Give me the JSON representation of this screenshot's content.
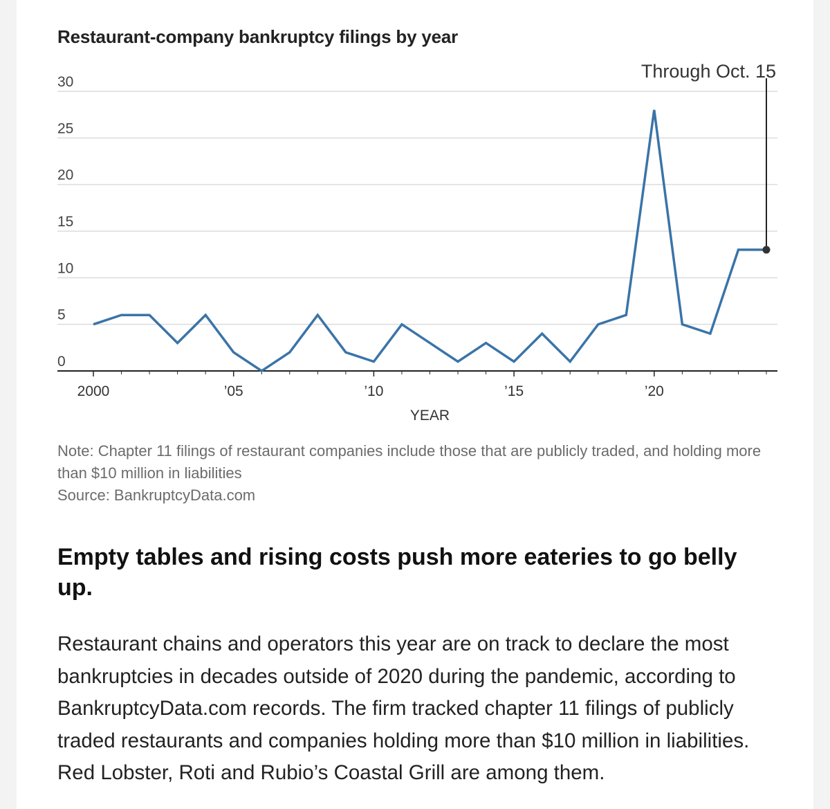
{
  "chart_data": {
    "type": "line",
    "title": "Restaurant-company bankruptcy filings by year",
    "xlabel": "YEAR",
    "ylabel": "",
    "x": [
      2000,
      2001,
      2002,
      2003,
      2004,
      2005,
      2006,
      2007,
      2008,
      2009,
      2010,
      2011,
      2012,
      2013,
      2014,
      2015,
      2016,
      2017,
      2018,
      2019,
      2020,
      2021,
      2022,
      2023,
      2024
    ],
    "series": [
      {
        "values": [
          5,
          6,
          6,
          3,
          6,
          2,
          0,
          2,
          6,
          2,
          1,
          5,
          3,
          1,
          3,
          1,
          4,
          1,
          5,
          6,
          28,
          5,
          4,
          13,
          13
        ]
      }
    ],
    "ylim": [
      0,
      30
    ],
    "xlim": [
      2000,
      2024
    ],
    "yticks": [
      0,
      5,
      10,
      15,
      20,
      25,
      30
    ],
    "xticks": [
      {
        "value": 2000,
        "label": "2000"
      },
      {
        "value": 2005,
        "label": "’05"
      },
      {
        "value": 2010,
        "label": "’10"
      },
      {
        "value": 2015,
        "label": "’15"
      },
      {
        "value": 2020,
        "label": "’20"
      }
    ],
    "annotation": {
      "x": 2024,
      "y": 13,
      "text": "Through Oct. 15"
    },
    "grid": true,
    "line_color": "#3a74a8"
  },
  "note": "Note: Chapter 11 filings of restaurant companies include those that are publicly traded, and holding more than $10 million in liabilities",
  "source": "Source: BankruptcyData.com",
  "article": {
    "headline": "Empty tables and rising costs push more eateries to go belly up.",
    "body": "Restaurant chains and operators this year are on track to declare the most bankruptcies in decades outside of 2020 during the pandemic, according to BankruptcyData.com records. The firm tracked chapter 11 filings of publicly traded restaurants and companies holding more than $10 million in liabilities. Red Lobster, Roti and Rubio’s Coastal Grill are among them."
  }
}
